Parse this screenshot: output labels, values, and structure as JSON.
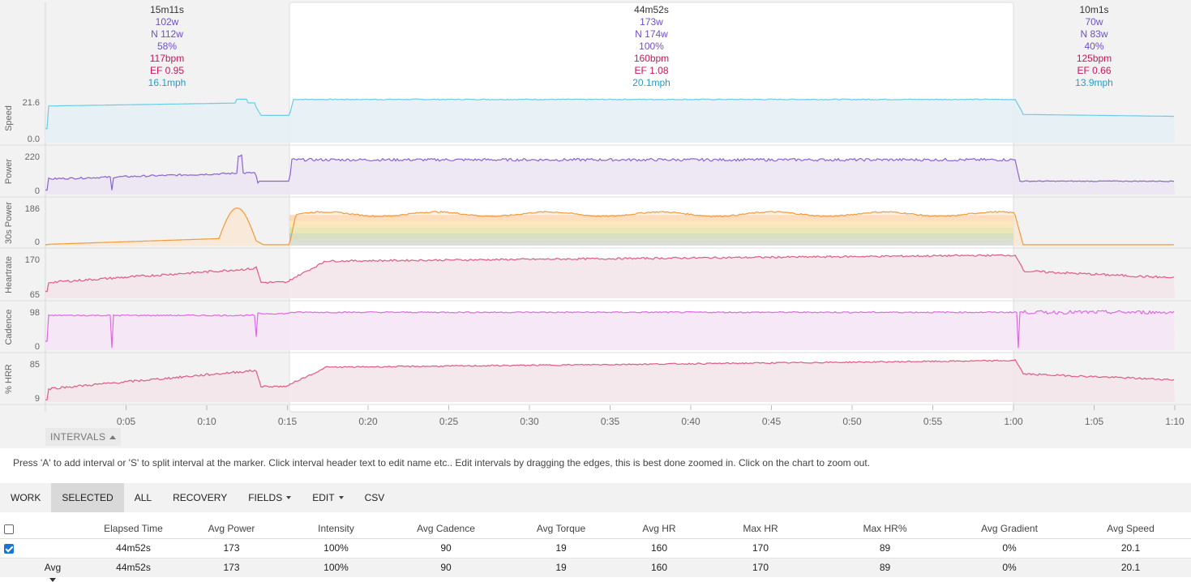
{
  "intervals": [
    {
      "time": "15m11s",
      "power": "102w",
      "npower": "N 112w",
      "intensity": "58%",
      "hr": "117bpm",
      "ef": "EF 0.95",
      "speed": "16.1mph",
      "selected": false
    },
    {
      "time": "44m52s",
      "power": "173w",
      "npower": "N 174w",
      "intensity": "100%",
      "hr": "160bpm",
      "ef": "EF 1.08",
      "speed": "20.1mph",
      "selected": true
    },
    {
      "time": "10m1s",
      "power": "70w",
      "npower": "N 83w",
      "intensity": "40%",
      "hr": "125bpm",
      "ef": "EF 0.66",
      "speed": "13.9mph",
      "selected": false
    }
  ],
  "panels": [
    {
      "label": "Speed",
      "ymax": "21.6",
      "ymin": "0.0",
      "color": "#6ccbe8",
      "fill": "#e4f0f5"
    },
    {
      "label": "Power",
      "ymax": "220",
      "ymin": "0",
      "color": "#8a63d2",
      "fill": "#ebe6f3"
    },
    {
      "label": "30s Power",
      "ymax": "186",
      "ymin": "0",
      "color": "#f29a3c",
      "fill": "#fde2c5"
    },
    {
      "label": "Heartrate",
      "ymax": "170",
      "ymin": "65",
      "color": "#e05a80",
      "fill": "#f4e6ea"
    },
    {
      "label": "Cadence",
      "ymax": "98",
      "ymin": "0",
      "color": "#e066e6",
      "fill": "#f6e6f6"
    },
    {
      "label": "% HRR",
      "ymax": "85",
      "ymin": "9",
      "color": "#e05a80",
      "fill": "#f4e6ea"
    }
  ],
  "x_ticks": [
    "0:05",
    "0:10",
    "0:15",
    "0:20",
    "0:25",
    "0:30",
    "0:35",
    "0:40",
    "0:45",
    "0:50",
    "0:55",
    "1:00",
    "1:05",
    "1:10"
  ],
  "intervals_toggle": "INTERVALS",
  "help_text": "Press 'A' to add interval or 'S' to split interval at the marker. Click interval header text to edit name etc.. Edit intervals by dragging the edges, this is best done zoomed in. Click on the chart to zoom out.",
  "toolbar": {
    "work": "WORK",
    "selected": "SELECTED",
    "all": "ALL",
    "recovery": "RECOVERY",
    "fields": "FIELDS",
    "edit": "EDIT",
    "csv": "CSV",
    "active": "selected"
  },
  "table": {
    "headers": [
      "Elapsed Time",
      "Avg Power",
      "Intensity",
      "Avg Cadence",
      "Avg Torque",
      "Avg HR",
      "Max HR",
      "Max HR%",
      "Avg Gradient",
      "Avg Speed"
    ],
    "rows": [
      {
        "checked": true,
        "cells": [
          "44m52s",
          "173",
          "100%",
          "90",
          "19",
          "160",
          "170",
          "89",
          "0%",
          "20.1"
        ]
      }
    ],
    "avg": {
      "label": "Avg",
      "cells": [
        "44m52s",
        "173",
        "100%",
        "90",
        "19",
        "160",
        "170",
        "89",
        "0%",
        "20.1"
      ]
    }
  }
}
